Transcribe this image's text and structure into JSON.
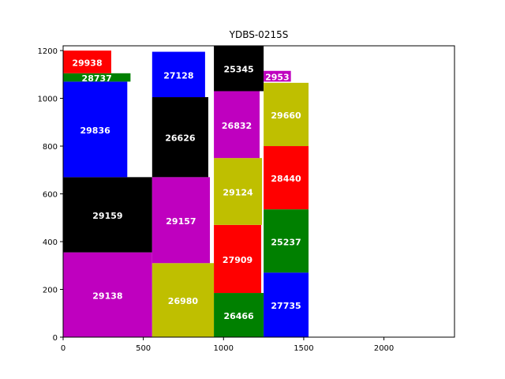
{
  "chart_data": {
    "type": "rectangles",
    "title": "YDBS-0215S",
    "xlim": [
      0,
      2440
    ],
    "ylim": [
      0,
      1220
    ],
    "xticks": [
      0,
      500,
      1000,
      1500,
      2000
    ],
    "yticks": [
      0,
      200,
      400,
      600,
      800,
      1000,
      1200
    ],
    "grid": false,
    "colors": {
      "red": "#ff0000",
      "green": "#008000",
      "blue": "#0000ff",
      "black": "#000000",
      "magenta": "#bf00bf",
      "olive": "#bfbf00"
    },
    "rects": [
      {
        "label": "29138",
        "x": 0,
        "y": 0,
        "w": 555,
        "h": 355,
        "color": "magenta"
      },
      {
        "label": "29159",
        "x": 0,
        "y": 355,
        "w": 555,
        "h": 315,
        "color": "black"
      },
      {
        "label": "29836",
        "x": 0,
        "y": 670,
        "w": 400,
        "h": 400,
        "color": "blue"
      },
      {
        "label": "28737",
        "x": 0,
        "y": 1070,
        "w": 420,
        "h": 35,
        "color": "green"
      },
      {
        "label": "29938",
        "x": 0,
        "y": 1105,
        "w": 300,
        "h": 95,
        "color": "red"
      },
      {
        "label": "26980",
        "x": 555,
        "y": 0,
        "w": 385,
        "h": 310,
        "color": "olive"
      },
      {
        "label": "29157",
        "x": 555,
        "y": 310,
        "w": 360,
        "h": 360,
        "color": "magenta"
      },
      {
        "label": "26626",
        "x": 555,
        "y": 670,
        "w": 350,
        "h": 335,
        "color": "black"
      },
      {
        "label": "27128",
        "x": 555,
        "y": 1005,
        "w": 330,
        "h": 190,
        "color": "blue"
      },
      {
        "label": "26466",
        "x": 940,
        "y": 0,
        "w": 310,
        "h": 185,
        "color": "green"
      },
      {
        "label": "27909",
        "x": 940,
        "y": 185,
        "w": 295,
        "h": 285,
        "color": "red"
      },
      {
        "label": "29124",
        "x": 940,
        "y": 470,
        "w": 300,
        "h": 280,
        "color": "olive"
      },
      {
        "label": "26832",
        "x": 940,
        "y": 750,
        "w": 285,
        "h": 280,
        "color": "magenta"
      },
      {
        "label": "25345",
        "x": 940,
        "y": 1030,
        "w": 310,
        "h": 190,
        "color": "black"
      },
      {
        "label": "2953",
        "x": 1250,
        "y": 1070,
        "w": 170,
        "h": 45,
        "color": "magenta"
      },
      {
        "label": "29660",
        "x": 1250,
        "y": 800,
        "w": 280,
        "h": 265,
        "color": "olive"
      },
      {
        "label": "28440",
        "x": 1250,
        "y": 535,
        "w": 280,
        "h": 265,
        "color": "red"
      },
      {
        "label": "25237",
        "x": 1250,
        "y": 270,
        "w": 280,
        "h": 265,
        "color": "green"
      },
      {
        "label": "27735",
        "x": 1250,
        "y": 0,
        "w": 280,
        "h": 270,
        "color": "blue"
      }
    ]
  }
}
